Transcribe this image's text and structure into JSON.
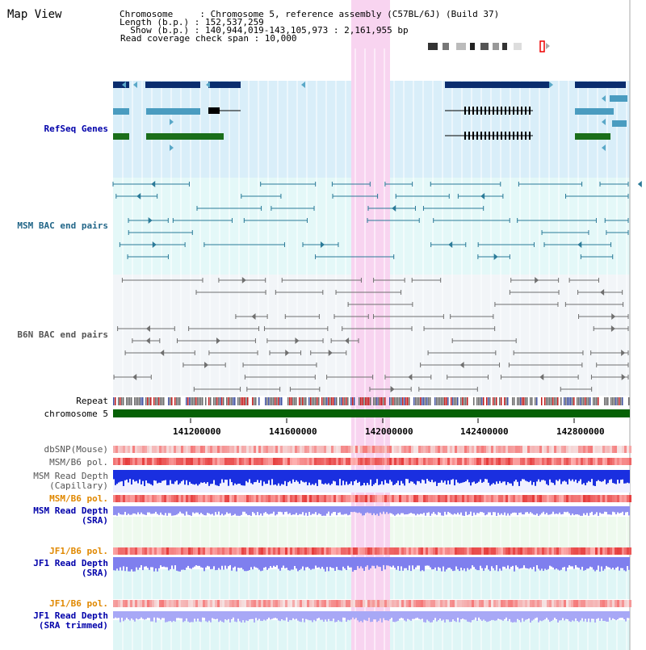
{
  "view_title": "Map View",
  "header": {
    "chromosome_line": "Chromosome     : Chromosome 5, reference assembly (C57BL/6J) (Build 37)",
    "length_line": "Length (b.p.) : 152,537,259",
    "show_line": "  Show (b.p.) : 140,944,019-143,105,973 : 2,161,955 bp",
    "coverage_line": "Read coverage check span : 10,000"
  },
  "tracks": {
    "refseq": "RefSeq Genes",
    "msm_bac": "MSM BAC end pairs",
    "b6n_bac": "B6N BAC end pairs",
    "repeat": "Repeat",
    "chromosome": "chromosome 5",
    "dbsnp": "dbSNP(Mouse)",
    "msm_b6_pol_1": "MSM/B6 pol.",
    "msm_depth_cap": "MSM Read Depth\n(Capillary)",
    "msm_b6_pol_2": "MSM/B6 pol.",
    "msm_depth_sra": "MSM Read Depth\n(SRA)",
    "jf1_b6_pol_1": "JF1/B6 pol.",
    "jf1_depth_sra": "JF1 Read Depth\n(SRA)",
    "jf1_b6_pol_2": "JF1/B6 pol.",
    "jf1_depth_trim": "JF1 Read Depth\n(SRA trimmed)"
  },
  "axis_ticks": [
    "141200000",
    "141600000",
    "142000000",
    "142400000",
    "142800000"
  ],
  "colors": {
    "refseq_label": "#0000aa",
    "msm_bac_label": "#226688",
    "b6n_bac_label": "#555555",
    "orange_label": "#e08800",
    "blue_label": "#0000aa",
    "gene_navy": "#0a2d6e",
    "gene_teal": "#4a9cc0",
    "gene_green": "#1a6e1a",
    "highlight": "#f8d4f0"
  }
}
